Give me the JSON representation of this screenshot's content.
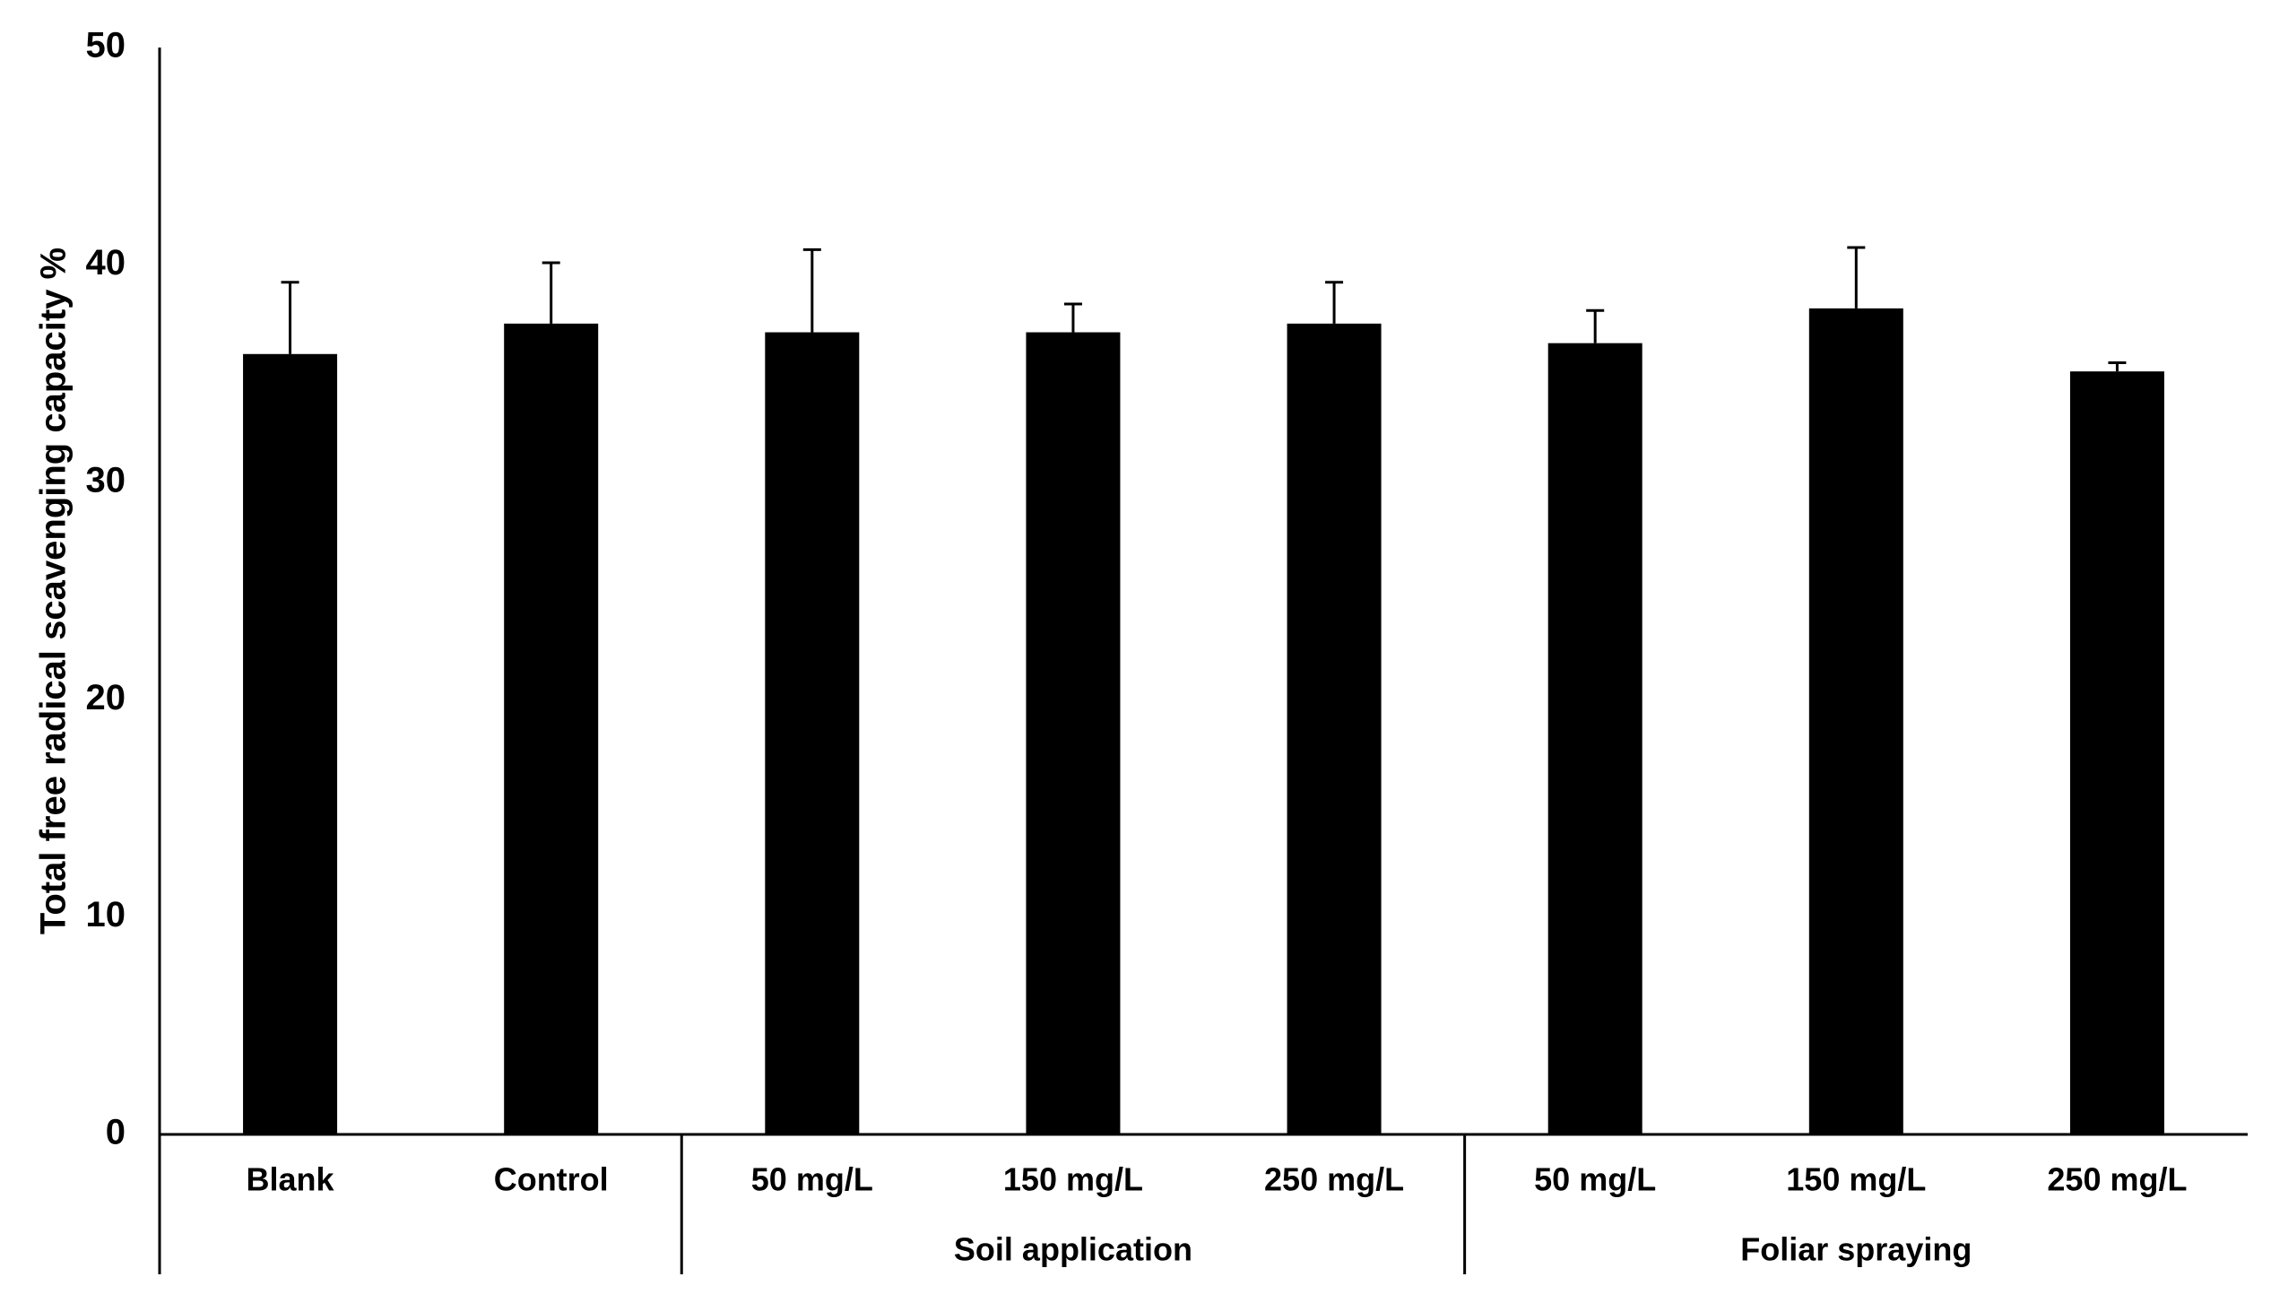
{
  "chart_data": {
    "type": "bar",
    "y_label": "Total free radical scavenging capacity %",
    "categories": [
      "Blank",
      "Control",
      "50 mg/L",
      "150 mg/L",
      "250 mg/L",
      "50 mg/L",
      "150 mg/L",
      "250 mg/L"
    ],
    "values": [
      35.9,
      37.3,
      36.9,
      36.9,
      37.3,
      36.4,
      38.0,
      35.1
    ],
    "errors": [
      3.3,
      2.8,
      3.8,
      1.3,
      1.9,
      1.5,
      2.8,
      0.4
    ],
    "groups": [
      {
        "label": "Soil application",
        "first": 2,
        "count": 3
      },
      {
        "label": "Foliar spraying",
        "first": 5,
        "count": 3
      }
    ],
    "color": "#000000",
    "ylim": [
      0,
      50
    ],
    "yticks": [
      0,
      10,
      20,
      30,
      40,
      50
    ],
    "grid": false
  }
}
